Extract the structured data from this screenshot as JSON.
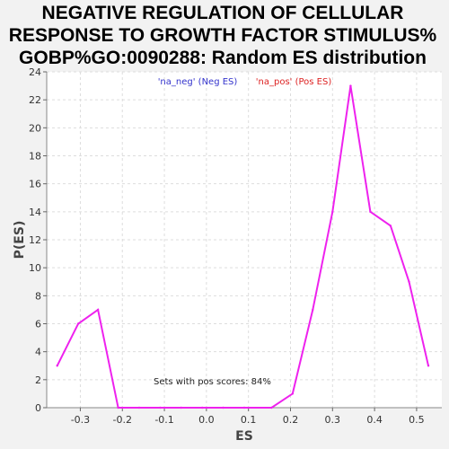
{
  "chart_data": {
    "type": "line",
    "title_lines": [
      "NEGATIVE REGULATION OF CELLULAR",
      "RESPONSE TO GROWTH FACTOR STIMULUS%",
      "GOBP%GO:0090288: Random ES distribution"
    ],
    "xlabel": "ES",
    "ylabel": "P(ES)",
    "xlim": [
      -0.38,
      0.56
    ],
    "ylim": [
      0,
      24
    ],
    "xticks": [
      "-0.3",
      "-0.2",
      "-0.1",
      "0.0",
      "0.1",
      "0.2",
      "0.3",
      "0.4",
      "0.5"
    ],
    "yticks": [
      "0",
      "2",
      "4",
      "6",
      "8",
      "10",
      "12",
      "14",
      "16",
      "18",
      "20",
      "22",
      "24"
    ],
    "grid": true,
    "legend": [
      {
        "label": "'na_neg' (Neg ES)",
        "color": "#3333cc"
      },
      {
        "label": "'na_pos' (Pos ES)",
        "color": "#dd2222"
      }
    ],
    "annotation": "Sets with pos scores: 84%",
    "series": [
      {
        "color": "#ee22ee",
        "x": [
          -0.355,
          -0.305,
          -0.258,
          -0.21,
          -0.16,
          -0.11,
          -0.06,
          -0.01,
          0.04,
          0.09,
          0.155,
          0.205,
          0.253,
          0.3,
          0.343,
          0.39,
          0.438,
          0.482,
          0.528
        ],
        "y": [
          3,
          6,
          7,
          0,
          0,
          0,
          0,
          0,
          0,
          0,
          0,
          1,
          7,
          14,
          23,
          14,
          13,
          9,
          3
        ]
      }
    ]
  }
}
